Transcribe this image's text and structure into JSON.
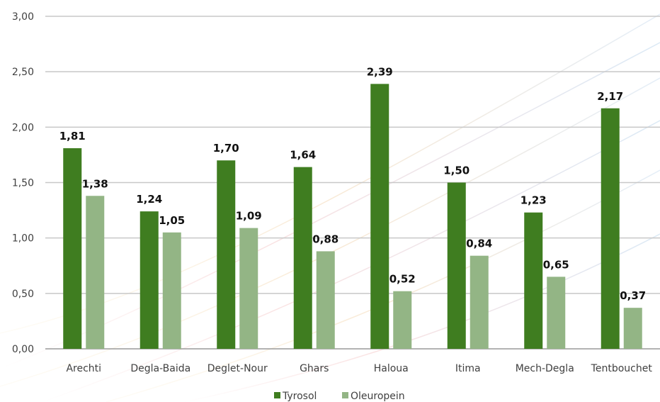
{
  "chart_data": {
    "type": "bar",
    "categories": [
      "Arechti",
      "Degla-Baida",
      "Deglet-Nour",
      "Ghars",
      "Haloua",
      "Itima",
      "Mech-Degla",
      "Tentbouchet"
    ],
    "series": [
      {
        "name": "Tyrosol",
        "color": "#3f7d20",
        "values": [
          1.81,
          1.24,
          1.7,
          1.64,
          2.39,
          1.5,
          1.23,
          2.17
        ],
        "labels": [
          "1,81",
          "1,24",
          "1,70",
          "1,64",
          "2,39",
          "1,50",
          "1,23",
          "2,17"
        ]
      },
      {
        "name": "Oleuropein",
        "color": "#93b585",
        "values": [
          1.38,
          1.05,
          1.09,
          0.88,
          0.52,
          0.84,
          0.65,
          0.37
        ],
        "labels": [
          "1,38",
          "1,05",
          "1,09",
          "0,88",
          "0,52",
          "0,84",
          "0,65",
          "0,37"
        ]
      }
    ],
    "ylim": [
      0,
      3
    ],
    "yticks": [
      0,
      0.5,
      1,
      1.5,
      2,
      2.5,
      3
    ],
    "ytick_labels": [
      "0,00",
      "0,50",
      "1,00",
      "1,50",
      "2,00",
      "2,50",
      "3,00"
    ],
    "grid": true,
    "legend_position": "bottom-center",
    "title": "",
    "xlabel": "",
    "ylabel": ""
  }
}
